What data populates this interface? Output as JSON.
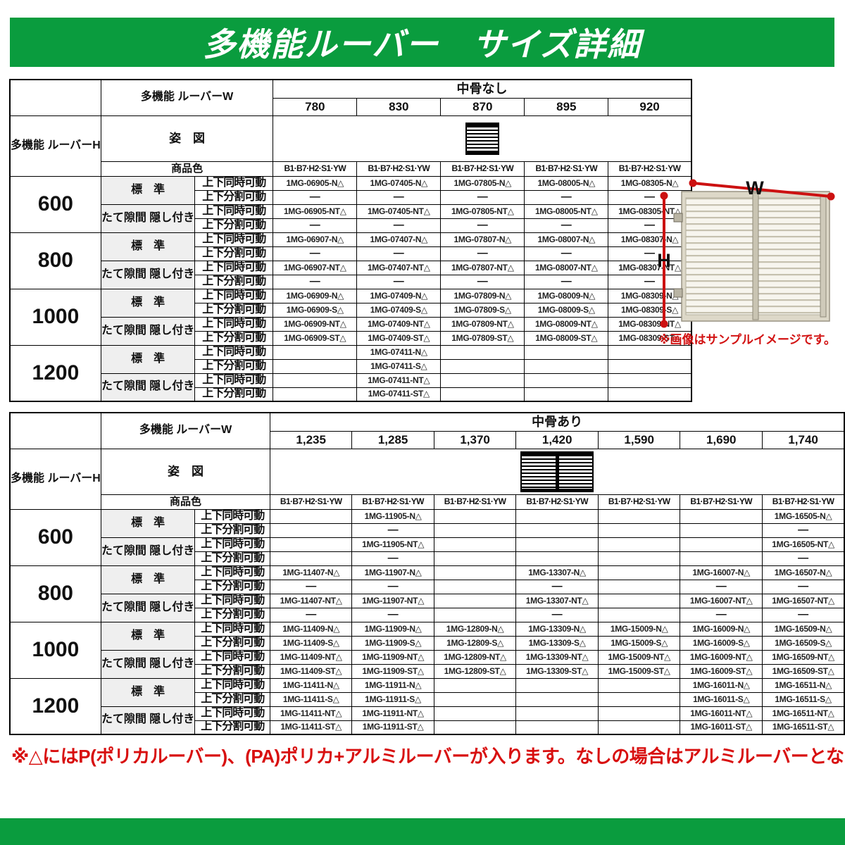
{
  "banner": {
    "title": "多機能ルーバー　サイズ詳細"
  },
  "labels": {
    "louver_w": "多機能\nルーバーW",
    "louver_h": "多機能\nルーバーH",
    "figure": "姿　図",
    "product_color": "商品色",
    "color_codes": "B1·B7·H2·S1·YW",
    "standard": "標　準",
    "gap_hide": "たて隙間\n隠し付き",
    "move_simul": "上下同時可動",
    "move_split": "上下分割可動"
  },
  "tables": [
    {
      "group_title": "中骨なし",
      "widths": [
        "780",
        "830",
        "870",
        "895",
        "920"
      ],
      "rows": [
        {
          "height": "600",
          "std_simul": [
            "1MG-06905-N△",
            "1MG-07405-N△",
            "1MG-07805-N△",
            "1MG-08005-N△",
            "1MG-08305-N△"
          ],
          "std_split": [
            "—",
            "—",
            "—",
            "—",
            "—"
          ],
          "gap_simul": [
            "1MG-06905-NT△",
            "1MG-07405-NT△",
            "1MG-07805-NT△",
            "1MG-08005-NT△",
            "1MG-08305-NT△"
          ],
          "gap_split": [
            "—",
            "—",
            "—",
            "—",
            "—"
          ]
        },
        {
          "height": "800",
          "std_simul": [
            "1MG-06907-N△",
            "1MG-07407-N△",
            "1MG-07807-N△",
            "1MG-08007-N△",
            "1MG-08307-N△"
          ],
          "std_split": [
            "—",
            "—",
            "—",
            "—",
            "—"
          ],
          "gap_simul": [
            "1MG-06907-NT△",
            "1MG-07407-NT△",
            "1MG-07807-NT△",
            "1MG-08007-NT△",
            "1MG-08307-NT△"
          ],
          "gap_split": [
            "—",
            "—",
            "—",
            "—",
            "—"
          ]
        },
        {
          "height": "1000",
          "std_simul": [
            "1MG-06909-N△",
            "1MG-07409-N△",
            "1MG-07809-N△",
            "1MG-08009-N△",
            "1MG-08309-N△"
          ],
          "std_split": [
            "1MG-06909-S△",
            "1MG-07409-S△",
            "1MG-07809-S△",
            "1MG-08009-S△",
            "1MG-08309-S△"
          ],
          "gap_simul": [
            "1MG-06909-NT△",
            "1MG-07409-NT△",
            "1MG-07809-NT△",
            "1MG-08009-NT△",
            "1MG-08309-NT△"
          ],
          "gap_split": [
            "1MG-06909-ST△",
            "1MG-07409-ST△",
            "1MG-07809-ST△",
            "1MG-08009-ST△",
            "1MG-08309-ST△"
          ]
        },
        {
          "height": "1200",
          "std_simul": [
            "",
            "1MG-07411-N△",
            "",
            "",
            ""
          ],
          "std_split": [
            "",
            "1MG-07411-S△",
            "",
            "",
            ""
          ],
          "gap_simul": [
            "",
            "1MG-07411-NT△",
            "",
            "",
            ""
          ],
          "gap_split": [
            "",
            "1MG-07411-ST△",
            "",
            "",
            ""
          ]
        }
      ]
    },
    {
      "group_title": "中骨あり",
      "widths": [
        "1,235",
        "1,285",
        "1,370",
        "1,420",
        "1,590",
        "1,690",
        "1,740"
      ],
      "rows": [
        {
          "height": "600",
          "std_simul": [
            "",
            "1MG-11905-N△",
            "",
            "",
            "",
            "",
            "1MG-16505-N△"
          ],
          "std_split": [
            "",
            "—",
            "",
            "",
            "",
            "",
            "—"
          ],
          "gap_simul": [
            "",
            "1MG-11905-NT△",
            "",
            "",
            "",
            "",
            "1MG-16505-NT△"
          ],
          "gap_split": [
            "",
            "—",
            "",
            "",
            "",
            "",
            "—"
          ]
        },
        {
          "height": "800",
          "std_simul": [
            "1MG-11407-N△",
            "1MG-11907-N△",
            "",
            "1MG-13307-N△",
            "",
            "1MG-16007-N△",
            "1MG-16507-N△"
          ],
          "std_split": [
            "—",
            "—",
            "",
            "—",
            "",
            "—",
            "—"
          ],
          "gap_simul": [
            "1MG-11407-NT△",
            "1MG-11907-NT△",
            "",
            "1MG-13307-NT△",
            "",
            "1MG-16007-NT△",
            "1MG-16507-NT△"
          ],
          "gap_split": [
            "—",
            "—",
            "",
            "—",
            "",
            "—",
            "—"
          ]
        },
        {
          "height": "1000",
          "std_simul": [
            "1MG-11409-N△",
            "1MG-11909-N△",
            "1MG-12809-N△",
            "1MG-13309-N△",
            "1MG-15009-N△",
            "1MG-16009-N△",
            "1MG-16509-N△"
          ],
          "std_split": [
            "1MG-11409-S△",
            "1MG-11909-S△",
            "1MG-12809-S△",
            "1MG-13309-S△",
            "1MG-15009-S△",
            "1MG-16009-S△",
            "1MG-16509-S△"
          ],
          "gap_simul": [
            "1MG-11409-NT△",
            "1MG-11909-NT△",
            "1MG-12809-NT△",
            "1MG-13309-NT△",
            "1MG-15009-NT△",
            "1MG-16009-NT△",
            "1MG-16509-NT△"
          ],
          "gap_split": [
            "1MG-11409-ST△",
            "1MG-11909-ST△",
            "1MG-12809-ST△",
            "1MG-13309-ST△",
            "1MG-15009-ST△",
            "1MG-16009-ST△",
            "1MG-16509-ST△"
          ]
        },
        {
          "height": "1200",
          "std_simul": [
            "1MG-11411-N△",
            "1MG-11911-N△",
            "",
            "",
            "",
            "1MG-16011-N△",
            "1MG-16511-N△"
          ],
          "std_split": [
            "1MG-11411-S△",
            "1MG-11911-S△",
            "",
            "",
            "",
            "1MG-16011-S△",
            "1MG-16511-S△"
          ],
          "gap_simul": [
            "1MG-11411-NT△",
            "1MG-11911-NT△",
            "",
            "",
            "",
            "1MG-16011-NT△",
            "1MG-16511-NT△"
          ],
          "gap_split": [
            "1MG-11411-ST△",
            "1MG-11911-ST△",
            "",
            "",
            "",
            "1MG-16011-ST△",
            "1MG-16511-ST△"
          ]
        }
      ]
    }
  ],
  "product_image": {
    "w_label": "W",
    "h_label": "H",
    "caption": "※画像はサンプルイメージです。"
  },
  "note": "※△にはP(ポリカルーバー)、(PA)ポリカ+アルミルーバーが入ります。なしの場合はアルミルーバーとなります。",
  "colors": {
    "accent_green": "#0a9c3e",
    "note_red": "#d80f0f",
    "dim_red": "#cc1111"
  }
}
